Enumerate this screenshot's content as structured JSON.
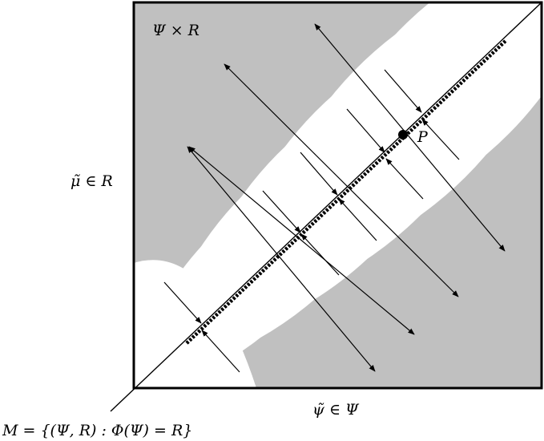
{
  "labels": {
    "space": "Ψ × R",
    "vertical_axis": "μ̃ ∈ R",
    "horizontal_axis": "ψ̃ ∈ Ψ",
    "manifold": "M = {(Ψ, R) : Φ(Ψ) = R}",
    "point": "P"
  },
  "colors": {
    "background": "#c0c0c0",
    "lens": "#ffffff",
    "stroke": "#000000"
  }
}
